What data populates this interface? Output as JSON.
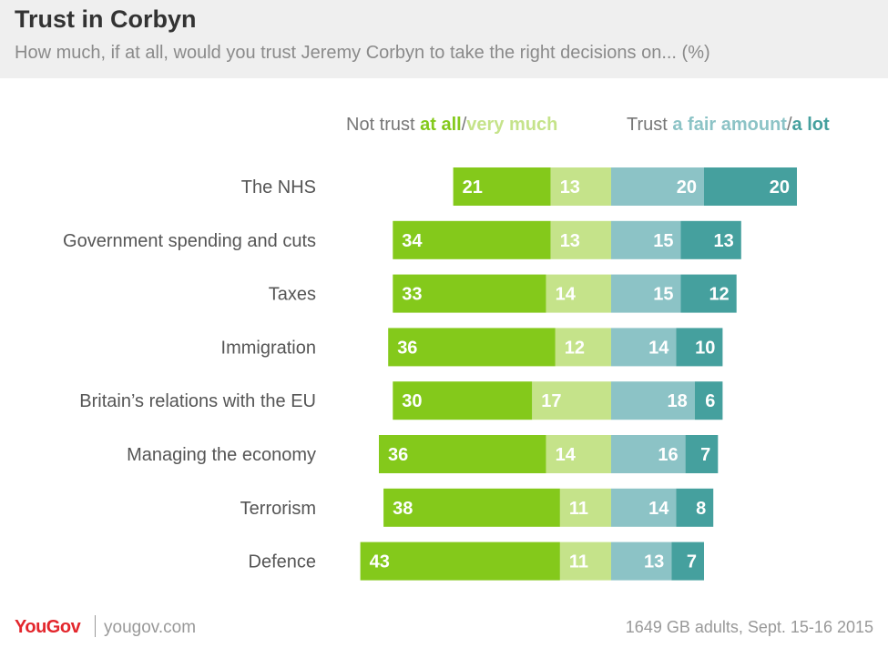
{
  "header": {
    "title": "Trust in Corbyn",
    "subtitle": "How much, if at all, would you trust Jeremy Corbyn to take the right decisions on... (%)"
  },
  "legend": {
    "not_trust_prefix": "Not trust ",
    "at_all": "at all",
    "slash1": "/",
    "very_much": "very much",
    "trust_prefix": "Trust ",
    "fair_amount": "a fair amount",
    "slash2": "/",
    "a_lot": "a lot"
  },
  "colors": {
    "at_all": "#84c91b",
    "very_much": "#c5e38a",
    "fair_amount": "#8cc3c6",
    "a_lot": "#45a09e"
  },
  "chart_data": {
    "type": "bar",
    "orientation": "horizontal-diverging",
    "categories": [
      "The NHS",
      "Government spending and cuts",
      "Taxes",
      "Immigration",
      "Britain’s relations with the EU",
      "Managing the economy",
      "Terrorism",
      "Defence"
    ],
    "series": [
      {
        "name": "at all",
        "values": [
          21,
          34,
          33,
          36,
          30,
          36,
          38,
          43
        ]
      },
      {
        "name": "very much",
        "values": [
          13,
          13,
          14,
          12,
          17,
          14,
          11,
          11
        ]
      },
      {
        "name": "a fair amount",
        "values": [
          20,
          15,
          15,
          14,
          18,
          16,
          14,
          13
        ]
      },
      {
        "name": "a lot",
        "values": [
          20,
          13,
          12,
          10,
          6,
          7,
          8,
          7
        ]
      }
    ]
  },
  "footer": {
    "logo": "YouGov",
    "site": "yougov.com",
    "note": "1649 GB adults, Sept. 15-16 2015"
  }
}
